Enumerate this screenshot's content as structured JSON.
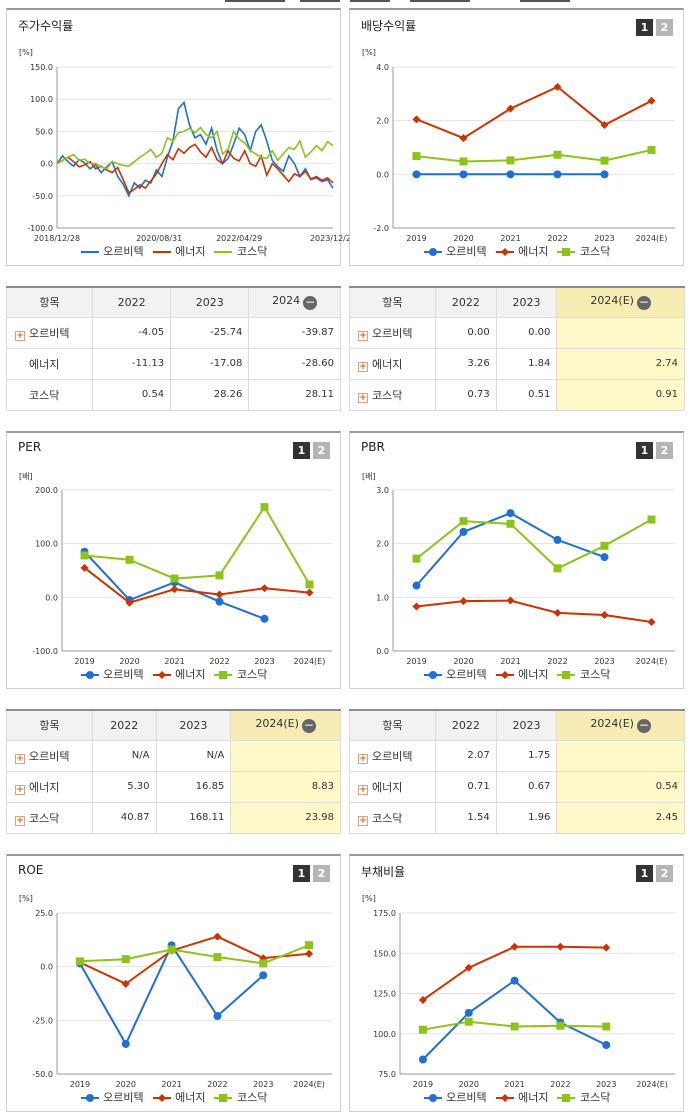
{
  "colors": {
    "series": [
      "#1f6fd6",
      "#cc3300",
      "#8cc41a"
    ],
    "grid": "#e3e3e3"
  },
  "chart_data": [
    {
      "id": "stock",
      "type": "line",
      "title": "주가수익률",
      "unit": "[%]",
      "series_names": [
        "오르비텍",
        "에너지",
        "코스닥"
      ],
      "ylim": [
        -100,
        150
      ],
      "yticks": [
        "150.0",
        "100.0",
        "50.0",
        "0.0",
        "-50.0",
        "-100.0"
      ],
      "xlabels": [
        "2018/12/28",
        "2020/08/31",
        "2022/04/29",
        "2023/12/28"
      ],
      "x_label_pos": [
        0,
        0.37,
        0.66,
        1.0
      ],
      "series": [
        {
          "name": "오르비텍",
          "values": [
            0,
            12,
            3,
            -4,
            6,
            1,
            -8,
            -2,
            -14,
            -5,
            3,
            -20,
            -32,
            -50,
            -30,
            -38,
            -26,
            -30,
            -10,
            -20,
            10,
            35,
            85,
            95,
            60,
            40,
            45,
            30,
            55,
            20,
            0,
            8,
            30,
            55,
            45,
            20,
            50,
            60,
            35,
            5,
            -5,
            -12,
            12,
            0,
            -20,
            -8,
            -25,
            -22,
            -28,
            -25,
            -38
          ]
        },
        {
          "name": "에너지",
          "values": [
            0,
            5,
            10,
            3,
            -5,
            -2,
            3,
            -8,
            -4,
            -10,
            -14,
            -6,
            -25,
            -45,
            -40,
            -33,
            -38,
            -27,
            -16,
            0,
            14,
            6,
            23,
            16,
            25,
            30,
            18,
            10,
            25,
            6,
            0,
            20,
            8,
            4,
            20,
            0,
            -4,
            12,
            -18,
            0,
            -8,
            -18,
            -28,
            -16,
            -20,
            -12,
            -24,
            -20,
            -26,
            -22,
            -30
          ]
        },
        {
          "name": "코스닥",
          "values": [
            0,
            5,
            10,
            14,
            5,
            7,
            0,
            0,
            -5,
            -8,
            3,
            0,
            -3,
            -4,
            3,
            10,
            15,
            22,
            10,
            16,
            40,
            35,
            48,
            50,
            55,
            48,
            56,
            45,
            40,
            50,
            15,
            22,
            50,
            38,
            32,
            20,
            15,
            10,
            8,
            20,
            5,
            15,
            25,
            22,
            35,
            10,
            18,
            28,
            20,
            34,
            28
          ]
        }
      ]
    },
    {
      "id": "dividend",
      "type": "line",
      "title": "배당수익률",
      "unit": "[%]",
      "series_names": [
        "오르비텍",
        "에너지",
        "코스닥"
      ],
      "ylim": [
        -2,
        4
      ],
      "yticks": [
        "4.0",
        "2.0",
        "0.0",
        "-2.0"
      ],
      "categories": [
        "2019",
        "2020",
        "2021",
        "2022",
        "2023",
        "2024(E)"
      ],
      "series": [
        {
          "name": "오르비텍",
          "values": [
            0.0,
            0.0,
            0.0,
            0.0,
            0.0,
            null
          ]
        },
        {
          "name": "에너지",
          "values": [
            2.05,
            1.35,
            2.45,
            3.26,
            1.84,
            2.74
          ]
        },
        {
          "name": "코스닥",
          "values": [
            0.68,
            0.48,
            0.52,
            0.73,
            0.51,
            0.91
          ]
        }
      ]
    },
    {
      "id": "per",
      "type": "line",
      "title": "PER",
      "unit": "[배]",
      "series_names": [
        "오르비텍",
        "에너지",
        "코스닥"
      ],
      "ylim": [
        -100,
        200
      ],
      "yticks": [
        "200.0",
        "100.0",
        "0.0",
        "-100.0"
      ],
      "categories": [
        "2019",
        "2020",
        "2021",
        "2022",
        "2023",
        "2024(E)"
      ],
      "series": [
        {
          "name": "오르비텍",
          "values": [
            85,
            -5,
            28,
            -8,
            -40,
            null
          ]
        },
        {
          "name": "에너지",
          "values": [
            55,
            -10,
            15,
            5.3,
            16.85,
            8.83
          ]
        },
        {
          "name": "코스닥",
          "values": [
            78,
            70,
            35,
            40.87,
            168.11,
            23.98
          ]
        }
      ]
    },
    {
      "id": "pbr",
      "type": "line",
      "title": "PBR",
      "unit": "[배]",
      "series_names": [
        "오르비텍",
        "에너지",
        "코스닥"
      ],
      "ylim": [
        0,
        3
      ],
      "yticks": [
        "3.0",
        "2.0",
        "1.0",
        "0.0"
      ],
      "categories": [
        "2019",
        "2020",
        "2021",
        "2022",
        "2023",
        "2024(E)"
      ],
      "series": [
        {
          "name": "오르비텍",
          "values": [
            1.22,
            2.22,
            2.57,
            2.07,
            1.75,
            null
          ]
        },
        {
          "name": "에너지",
          "values": [
            0.83,
            0.93,
            0.94,
            0.71,
            0.67,
            0.54
          ]
        },
        {
          "name": "코스닥",
          "values": [
            1.72,
            2.42,
            2.37,
            1.54,
            1.96,
            2.45
          ]
        }
      ]
    },
    {
      "id": "roe",
      "type": "line",
      "title": "ROE",
      "unit": "[%]",
      "series_names": [
        "오르비텍",
        "에너지",
        "코스닥"
      ],
      "ylim": [
        -50,
        25
      ],
      "yticks": [
        "25.0",
        "0.0",
        "-25.0",
        "-50.0"
      ],
      "categories": [
        "2019",
        "2020",
        "2021",
        "2022",
        "2023",
        "2024(E)"
      ],
      "series": [
        {
          "name": "오르비텍",
          "values": [
            1.5,
            -36,
            10,
            -23,
            -4,
            null
          ]
        },
        {
          "name": "에너지",
          "values": [
            2,
            -8,
            7.5,
            14,
            4,
            6
          ]
        },
        {
          "name": "코스닥",
          "values": [
            2.5,
            3.5,
            8,
            4.5,
            1.5,
            10
          ]
        }
      ]
    },
    {
      "id": "debt",
      "type": "line",
      "title": "부채비율",
      "unit": "[%]",
      "series_names": [
        "오르비텍",
        "에너지",
        "코스닥"
      ],
      "ylim": [
        75,
        175
      ],
      "yticks": [
        "175.0",
        "150.0",
        "125.0",
        "100.0",
        "75.0"
      ],
      "categories": [
        "2019",
        "2020",
        "2021",
        "2022",
        "2023",
        "2024(E)"
      ],
      "series": [
        {
          "name": "오르비텍",
          "values": [
            84,
            113,
            133,
            107,
            93,
            null
          ]
        },
        {
          "name": "에너지",
          "values": [
            121,
            141,
            154,
            154,
            153.5,
            null
          ]
        },
        {
          "name": "코스닥",
          "values": [
            102.5,
            107.5,
            104.5,
            105,
            104.5,
            null
          ]
        }
      ]
    }
  ],
  "tables": {
    "stock": {
      "header": [
        "항목",
        "2022",
        "2023",
        "2024"
      ],
      "rows": [
        {
          "name": "오르비텍",
          "plus": true,
          "values": [
            "-4.05",
            "-25.74",
            "-39.87"
          ]
        },
        {
          "name": "에너지",
          "plus": false,
          "values": [
            "-11.13",
            "-17.08",
            "-28.60"
          ]
        },
        {
          "name": "코스닥",
          "plus": false,
          "values": [
            "0.54",
            "28.26",
            "28.11"
          ]
        }
      ]
    },
    "dividend": {
      "header": [
        "항목",
        "2022",
        "2023",
        "2024(E)"
      ],
      "rows": [
        {
          "name": "오르비텍",
          "plus": true,
          "values": [
            "0.00",
            "0.00",
            ""
          ]
        },
        {
          "name": "에너지",
          "plus": true,
          "values": [
            "3.26",
            "1.84",
            "2.74"
          ]
        },
        {
          "name": "코스닥",
          "plus": true,
          "values": [
            "0.73",
            "0.51",
            "0.91"
          ]
        }
      ]
    },
    "per": {
      "header": [
        "항목",
        "2022",
        "2023",
        "2024(E)"
      ],
      "rows": [
        {
          "name": "오르비텍",
          "plus": true,
          "values": [
            "N/A",
            "N/A",
            ""
          ]
        },
        {
          "name": "에너지",
          "plus": true,
          "values": [
            "5.30",
            "16.85",
            "8.83"
          ]
        },
        {
          "name": "코스닥",
          "plus": true,
          "values": [
            "40.87",
            "168.11",
            "23.98"
          ]
        }
      ]
    },
    "pbr": {
      "header": [
        "항목",
        "2022",
        "2023",
        "2024(E)"
      ],
      "rows": [
        {
          "name": "오르비텍",
          "plus": true,
          "values": [
            "2.07",
            "1.75",
            ""
          ]
        },
        {
          "name": "에너지",
          "plus": true,
          "values": [
            "0.71",
            "0.67",
            "0.54"
          ]
        },
        {
          "name": "코스닥",
          "plus": true,
          "values": [
            "1.54",
            "1.96",
            "2.45"
          ]
        }
      ]
    }
  },
  "buttons": [
    "1",
    "2"
  ]
}
